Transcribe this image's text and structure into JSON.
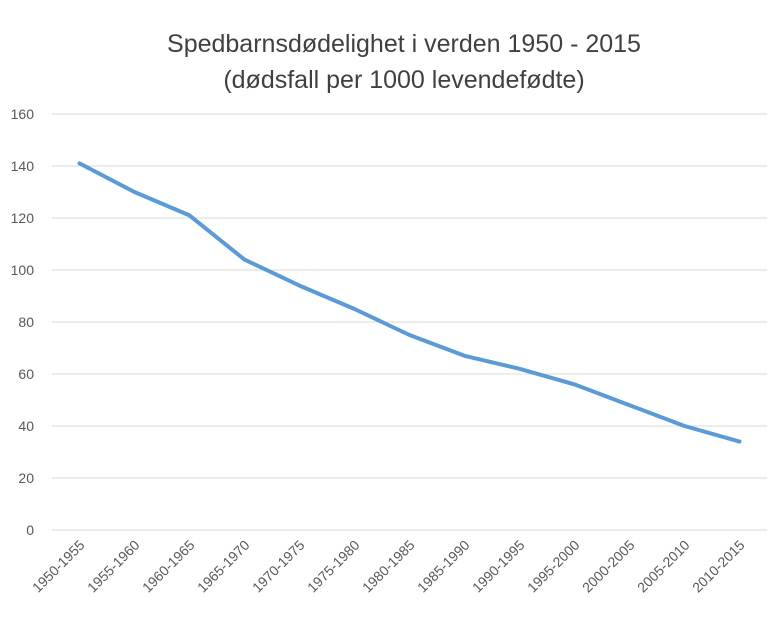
{
  "chart_data": {
    "type": "line",
    "title": "Spedbarnsdødelighet i verden 1950 - 2015",
    "subtitle": "(dødsfall per 1000 levendefødte)",
    "xlabel": "",
    "ylabel": "",
    "categories": [
      "1950-1955",
      "1955-1960",
      "1960-1965",
      "1965-1970",
      "1970-1975",
      "1975-1980",
      "1980-1985",
      "1985-1990",
      "1990-1995",
      "1995-2000",
      "2000-2005",
      "2005-2010",
      "2010-2015"
    ],
    "series": [
      {
        "values": [
          141,
          130,
          121,
          104,
          94,
          85,
          75,
          67,
          62,
          56,
          48,
          40,
          34
        ]
      }
    ],
    "ylim": [
      0,
      160
    ],
    "yticks": [
      0,
      20,
      40,
      60,
      80,
      100,
      120,
      140,
      160
    ],
    "grid": true,
    "legend": "none",
    "colors": {
      "series": "#5b9bd5",
      "grid": "#d9d9d9",
      "text": "#595959",
      "title": "#404040"
    }
  }
}
